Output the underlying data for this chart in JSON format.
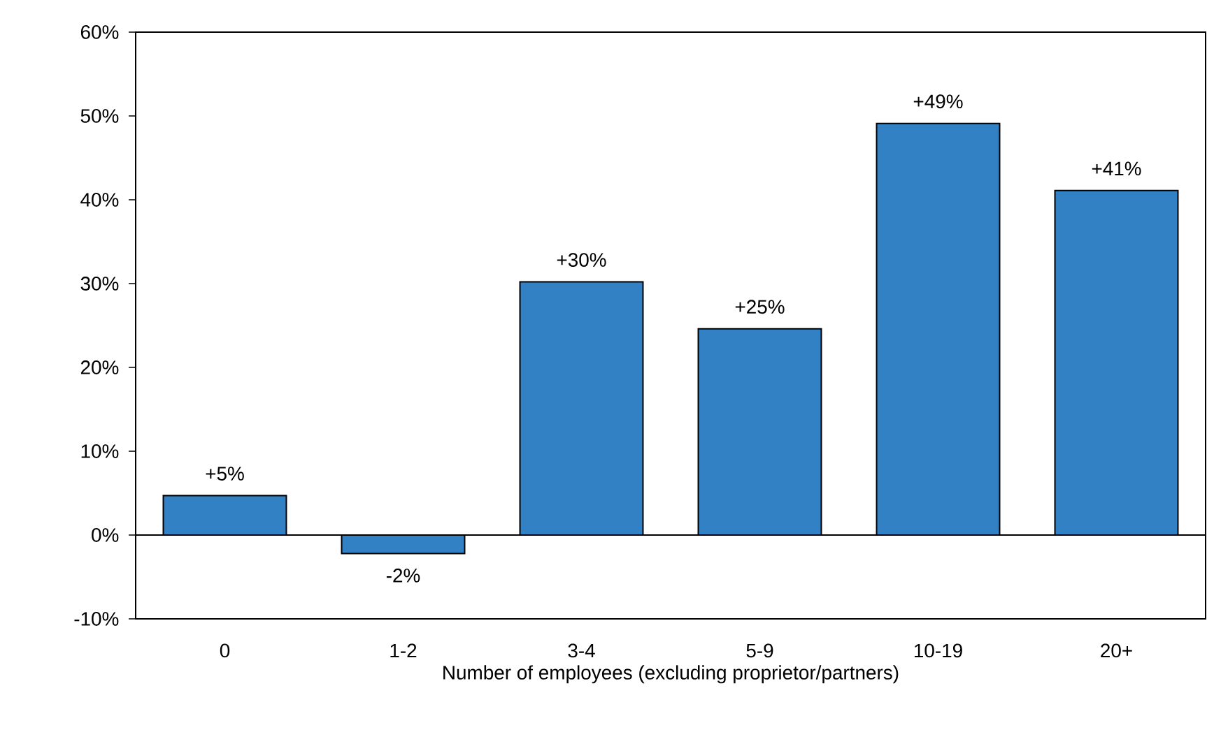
{
  "chart_data": {
    "type": "bar",
    "xlabel": "Number of employees (excluding proprietor/partners)",
    "categories": [
      "0",
      "1-2",
      "3-4",
      "5-9",
      "10-19",
      "20+"
    ],
    "values": [
      4.7,
      -2.2,
      30.2,
      24.6,
      49.1,
      41.1
    ],
    "value_labels": [
      "+5%",
      "-2%",
      "+30%",
      "+25%",
      "+49%",
      "+41%"
    ],
    "color": "#3381c5",
    "ylim": [
      -10,
      60
    ],
    "yticks": [
      {
        "value": -10,
        "label": "-10%"
      },
      {
        "value": 0,
        "label": "0%"
      },
      {
        "value": 10,
        "label": "10%"
      },
      {
        "value": 20,
        "label": "20%"
      },
      {
        "value": 30,
        "label": "30%"
      },
      {
        "value": 40,
        "label": "40%"
      },
      {
        "value": 50,
        "label": "50%"
      },
      {
        "value": 60,
        "label": "60%"
      }
    ],
    "ref_lines": [
      {
        "axis": "y",
        "value": 0,
        "color": "#000000"
      }
    ]
  }
}
